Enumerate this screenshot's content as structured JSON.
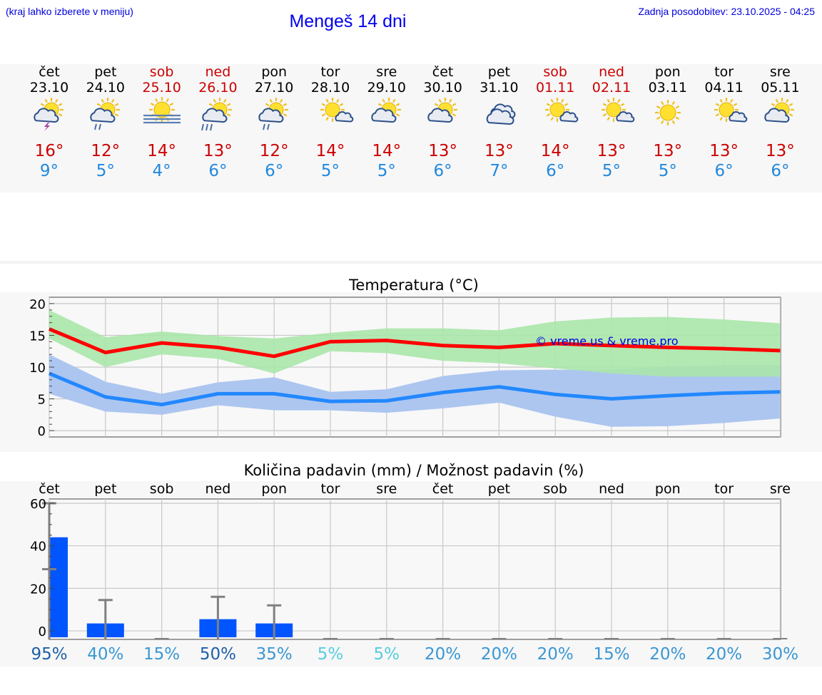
{
  "header": {
    "hint": "(kraj lahko izberete v meniju)",
    "title": "Mengeš 14 dni",
    "updated": "Zadnja posodobitev: 23.10.2025 - 04:25"
  },
  "days": [
    {
      "name": "čet",
      "date": "23.10",
      "tmax": "16°",
      "tmin": "9°",
      "weekend": false,
      "icon": "sun-thunderstorm-icon"
    },
    {
      "name": "pet",
      "date": "24.10",
      "tmax": "12°",
      "tmin": "5°",
      "weekend": false,
      "icon": "sun-cloud-rain-icon"
    },
    {
      "name": "sob",
      "date": "25.10",
      "tmax": "14°",
      "tmin": "4°",
      "weekend": true,
      "icon": "sun-fog-icon"
    },
    {
      "name": "ned",
      "date": "26.10",
      "tmax": "13°",
      "tmin": "6°",
      "weekend": true,
      "icon": "sun-cloud-heavy-rain-icon"
    },
    {
      "name": "pon",
      "date": "27.10",
      "tmax": "12°",
      "tmin": "6°",
      "weekend": false,
      "icon": "sun-cloud-light-rain-icon"
    },
    {
      "name": "tor",
      "date": "28.10",
      "tmax": "14°",
      "tmin": "5°",
      "weekend": false,
      "icon": "sun-small-cloud-icon"
    },
    {
      "name": "sre",
      "date": "29.10",
      "tmax": "14°",
      "tmin": "5°",
      "weekend": false,
      "icon": "sun-cloud-icon"
    },
    {
      "name": "čet",
      "date": "30.10",
      "tmax": "13°",
      "tmin": "6°",
      "weekend": false,
      "icon": "sun-cloud-icon"
    },
    {
      "name": "pet",
      "date": "31.10",
      "tmax": "13°",
      "tmin": "7°",
      "weekend": false,
      "icon": "cloudy-icon"
    },
    {
      "name": "sob",
      "date": "01.11",
      "tmax": "14°",
      "tmin": "6°",
      "weekend": true,
      "icon": "sun-small-cloud-icon"
    },
    {
      "name": "ned",
      "date": "02.11",
      "tmax": "13°",
      "tmin": "5°",
      "weekend": true,
      "icon": "sun-small-cloud-icon"
    },
    {
      "name": "pon",
      "date": "03.11",
      "tmax": "13°",
      "tmin": "5°",
      "weekend": false,
      "icon": "sun-icon"
    },
    {
      "name": "tor",
      "date": "04.11",
      "tmax": "13°",
      "tmin": "6°",
      "weekend": false,
      "icon": "sun-small-cloud-icon"
    },
    {
      "name": "sre",
      "date": "05.11",
      "tmax": "13°",
      "tmin": "6°",
      "weekend": false,
      "icon": "sun-cloud-icon"
    }
  ],
  "colors": {
    "weekday": "#000000",
    "weekend": "#cc0000",
    "tmax": "#cc0000",
    "tmin": "#2288dd",
    "max_line": "#ff0000",
    "min_line": "#2288ff",
    "max_band": "#aae6aa",
    "min_band": "#adc6f0",
    "overlap_band": "#7fc49c",
    "bar": "#0055ff",
    "error_bar": "#808080"
  },
  "chart_data": [
    {
      "type": "line",
      "title": "Temperatura (°C)",
      "watermark": "© vreme.us & vreme.pro",
      "ylim": [
        -1,
        21
      ],
      "yticks": [
        0,
        5,
        10,
        15,
        20
      ],
      "grid": true,
      "x": [
        0,
        1,
        2,
        3,
        4,
        5,
        6,
        7,
        8,
        9,
        10,
        11,
        12,
        13
      ],
      "series": [
        {
          "values": [
            16,
            12.3,
            13.8,
            13.1,
            11.7,
            14.0,
            14.2,
            13.4,
            13.1,
            13.7,
            13.4,
            13.1,
            12.9,
            12.6
          ],
          "band_low": [
            14.5,
            10.0,
            12.0,
            11.3,
            9.0,
            12.5,
            12.2,
            11.0,
            10.6,
            9.8,
            9.0,
            8.5,
            8.5,
            8.5
          ],
          "band_high": [
            19.0,
            14.7,
            15.6,
            14.9,
            14.5,
            15.4,
            16.1,
            16.1,
            15.8,
            17.2,
            17.8,
            17.9,
            17.5,
            16.9
          ]
        },
        {
          "values": [
            9.0,
            5.3,
            4.1,
            5.8,
            5.8,
            4.6,
            4.7,
            6.0,
            6.9,
            5.7,
            5.0,
            5.5,
            5.9,
            6.1
          ],
          "band_low": [
            5.8,
            3.0,
            2.5,
            4.0,
            3.2,
            3.2,
            2.8,
            3.5,
            4.4,
            2.2,
            0.6,
            0.7,
            1.2,
            1.9
          ],
          "band_high": [
            12.0,
            7.7,
            5.8,
            7.6,
            8.4,
            6.1,
            6.5,
            8.6,
            9.5,
            9.6,
            9.6,
            10.1,
            10.3,
            10.3
          ]
        }
      ]
    },
    {
      "type": "bar",
      "title": "Količina padavin (mm) / Možnost padavin (%)",
      "categories": [
        "čet",
        "pet",
        "sob",
        "ned",
        "pon",
        "tor",
        "sre",
        "čet",
        "pet",
        "sob",
        "ned",
        "pon",
        "tor",
        "sre"
      ],
      "ylim": [
        -4,
        62
      ],
      "yticks": [
        0,
        20,
        40,
        60
      ],
      "grid": true,
      "values": [
        44,
        3.5,
        0,
        5.5,
        3.5,
        0,
        0,
        0,
        0,
        0,
        0,
        0,
        0,
        0
      ],
      "error_low": [
        29,
        0,
        0,
        0,
        0,
        0,
        0,
        0,
        0,
        0,
        0,
        0,
        0,
        0
      ],
      "error_high": [
        60,
        14.5,
        0,
        16,
        12,
        0,
        0,
        0,
        0,
        0,
        0,
        0,
        0,
        0
      ],
      "probability": [
        "95%",
        "40%",
        "15%",
        "50%",
        "35%",
        "5%",
        "5%",
        "20%",
        "20%",
        "20%",
        "15%",
        "20%",
        "20%",
        "30%"
      ],
      "probability_colors": [
        "#1d5fa8",
        "#3a97d4",
        "#3a97d4",
        "#1d5fa8",
        "#3a97d4",
        "#55cce0",
        "#55cce0",
        "#3a97d4",
        "#3a97d4",
        "#3a97d4",
        "#3a97d4",
        "#3a97d4",
        "#3a97d4",
        "#3a97d4"
      ]
    }
  ]
}
